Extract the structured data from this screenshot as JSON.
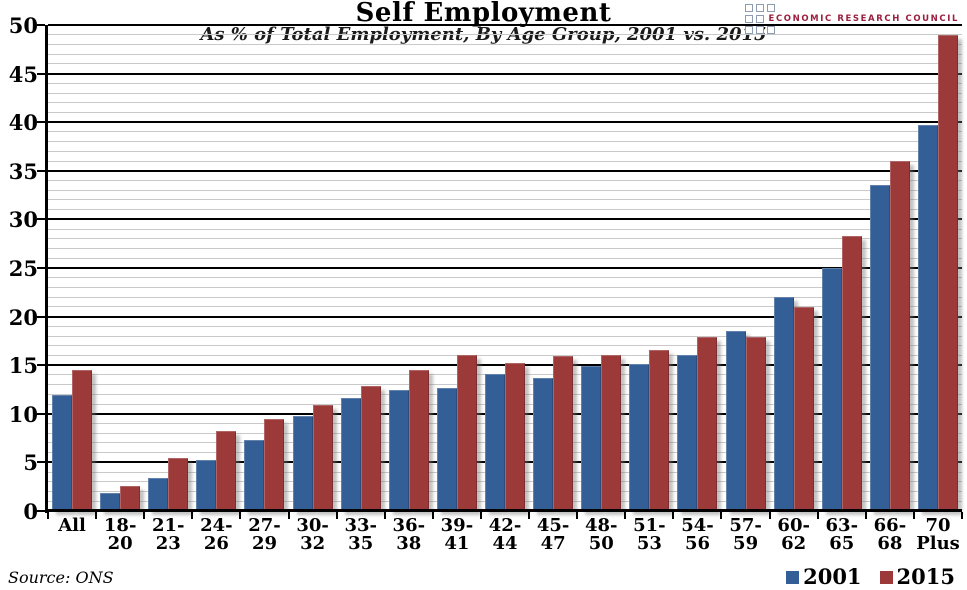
{
  "header": {
    "title": "Self Employment",
    "subtitle": "As % of Total Employment, By Age Group, 2001 vs. 2015"
  },
  "logo": {
    "text": "ECONOMIC RESEARCH COUNCIL",
    "square_color": "#8d9bb3",
    "text_color": "#9b1f3f"
  },
  "source_note": "Source: ONS",
  "legend": [
    {
      "label": "2001",
      "color": "#345f96"
    },
    {
      "label": "2015",
      "color": "#9c3939"
    }
  ],
  "chart_data": {
    "type": "bar",
    "title": "Self Employment",
    "subtitle": "As % of Total Employment, By Age Group, 2001 vs. 2015",
    "categories": [
      "All",
      "18-20",
      "21-23",
      "24-26",
      "27-29",
      "30-32",
      "33-35",
      "36-38",
      "39-41",
      "42-44",
      "45-47",
      "48-50",
      "51-53",
      "54-56",
      "57-59",
      "60-62",
      "63-65",
      "66-68",
      "70 Plus"
    ],
    "series": [
      {
        "name": "2001",
        "color": "#345f96",
        "values": [
          11.9,
          1.9,
          3.4,
          5.2,
          7.3,
          9.8,
          11.6,
          12.5,
          12.7,
          14.1,
          13.7,
          14.9,
          15.1,
          16.0,
          18.5,
          22.0,
          25.0,
          33.5,
          39.7
        ]
      },
      {
        "name": "2015",
        "color": "#9c3939",
        "values": [
          14.5,
          2.6,
          5.5,
          8.2,
          9.5,
          10.9,
          12.9,
          14.5,
          16.0,
          15.2,
          15.9,
          16.0,
          16.6,
          17.9,
          17.9,
          21.0,
          28.3,
          36.0,
          49.0
        ]
      }
    ],
    "xlabel": "",
    "ylabel": "",
    "ylim": [
      0,
      50
    ],
    "y_major_step": 5,
    "y_minor_step": 1,
    "grid": true,
    "gridline_minor_color": "#c9c9c9",
    "gridline_major_color": "#000000",
    "legend_position": "bottom-right",
    "source": "Source: ONS"
  }
}
